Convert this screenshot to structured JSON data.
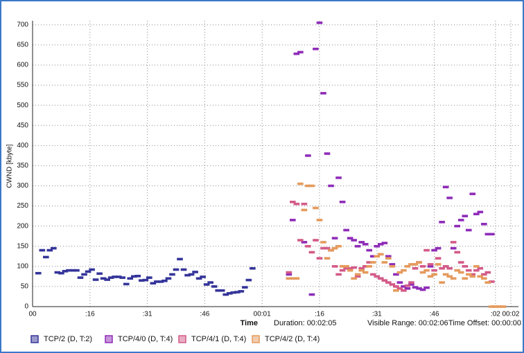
{
  "chart_data": {
    "type": "scatter",
    "y_label": "CWND [kbyte]",
    "x_label": "Time",
    "annotations": [
      "Duration: 00:02:05",
      "Visible Range: 00:02:06",
      "Time Offset: 00:00:00"
    ],
    "xlim": [
      0,
      127
    ],
    "xticks": [
      {
        "value": 0,
        "label": "00"
      },
      {
        "value": 15,
        "label": ":16"
      },
      {
        "value": 30,
        "label": ":31"
      },
      {
        "value": 45,
        "label": ":46"
      },
      {
        "value": 60,
        "label": "00:01"
      },
      {
        "value": 75,
        "label": ":16"
      },
      {
        "value": 90,
        "label": ":31"
      },
      {
        "value": 105,
        "label": ":46"
      },
      {
        "value": 121,
        "label": ":02"
      },
      {
        "value": 125,
        "label": "00:02"
      }
    ],
    "ylim": [
      0,
      710
    ],
    "yticks": [
      0,
      50,
      100,
      150,
      200,
      250,
      300,
      350,
      400,
      450,
      500,
      550,
      600,
      650,
      700
    ],
    "grid": true,
    "legend": "bottom",
    "series": [
      {
        "name": "TCP/2 (D, T:2)",
        "color": "#34349a",
        "x": [
          1.5,
          2.5,
          3.5,
          4.5,
          5.5,
          6.5,
          7.5,
          8.5,
          9.5,
          10.5,
          11.5,
          12.5,
          13.5,
          14.5,
          15.5,
          16.5,
          17.5,
          18.5,
          19.5,
          20.5,
          21.5,
          22.5,
          23.5,
          24.5,
          25.5,
          26.5,
          27.5,
          28.5,
          29.5,
          30.5,
          31.5,
          32.5,
          33.5,
          34.5,
          35.5,
          36.5,
          37.5,
          38.5,
          39.5,
          40.5,
          41.5,
          42.5,
          43.5,
          44.5,
          45.5,
          46.5,
          47.5,
          48.5,
          49.5,
          50.5,
          51.5,
          52.5,
          53.5,
          54.5,
          55.5,
          56.5,
          57.5
        ],
        "values": [
          83,
          140,
          123,
          140,
          145,
          85,
          83,
          88,
          90,
          90,
          90,
          72,
          80,
          87,
          92,
          67,
          82,
          70,
          67,
          72,
          74,
          74,
          72,
          56,
          70,
          75,
          76,
          65,
          66,
          72,
          58,
          62,
          62,
          64,
          70,
          80,
          92,
          118,
          92,
          78,
          80,
          86,
          70,
          74,
          55,
          60,
          50,
          40,
          40,
          30,
          33,
          35,
          36,
          38,
          48,
          66,
          95
        ]
      },
      {
        "name": "TCP/4/0 (D, T:4)",
        "color": "#8e2cb8",
        "x": [
          67,
          68,
          69,
          70,
          71,
          72,
          73,
          74,
          75,
          76,
          77,
          78,
          79,
          80,
          81,
          82,
          83,
          84,
          85,
          86,
          87,
          88,
          89,
          90,
          91,
          92,
          93,
          94,
          95,
          96,
          97,
          98,
          99,
          100,
          101,
          102,
          103,
          104,
          105,
          106,
          107,
          108,
          109,
          110,
          111,
          112,
          113,
          114,
          115,
          116,
          117,
          118,
          119,
          120
        ],
        "values": [
          80,
          215,
          628,
          632,
          160,
          375,
          30,
          640,
          705,
          530,
          380,
          300,
          170,
          320,
          260,
          190,
          170,
          165,
          150,
          160,
          155,
          140,
          125,
          150,
          155,
          158,
          125,
          105,
          80,
          60,
          50,
          45,
          55,
          48,
          45,
          42,
          47,
          100,
          140,
          145,
          210,
          297,
          270,
          145,
          200,
          215,
          225,
          190,
          280,
          230,
          235,
          205,
          180,
          180
        ]
      },
      {
        "name": "TCP/4/1 (D, T:4)",
        "color": "#d35a88",
        "x": [
          67,
          68,
          69,
          70,
          71,
          72,
          73,
          74,
          75,
          76,
          77,
          78,
          79,
          80,
          81,
          82,
          83,
          84,
          85,
          86,
          87,
          88,
          89,
          90,
          91,
          92,
          93,
          94,
          95,
          96,
          97,
          98,
          99,
          100,
          101,
          102,
          103,
          104,
          105,
          106,
          107,
          108,
          109,
          110,
          111,
          112,
          113,
          114,
          115,
          116,
          117,
          118,
          119,
          120
        ],
        "values": [
          85,
          260,
          255,
          165,
          255,
          150,
          135,
          165,
          120,
          145,
          145,
          140,
          100,
          80,
          90,
          95,
          95,
          97,
          75,
          95,
          100,
          110,
          80,
          75,
          70,
          65,
          60,
          55,
          50,
          45,
          40,
          52,
          60,
          95,
          110,
          100,
          140,
          105,
          90,
          120,
          95,
          100,
          95,
          160,
          135,
          110,
          100,
          90,
          80,
          90,
          95,
          80,
          85,
          62
        ]
      },
      {
        "name": "TCP/4/2 (D, T:4)",
        "color": "#e59a5c",
        "x": [
          67,
          68,
          69,
          70,
          71,
          72,
          73,
          74,
          75,
          76,
          77,
          78,
          79,
          80,
          81,
          82,
          83,
          84,
          85,
          86,
          87,
          88,
          89,
          90,
          91,
          92,
          93,
          94,
          95,
          96,
          97,
          98,
          99,
          100,
          101,
          102,
          103,
          104,
          105,
          106,
          107,
          108,
          109,
          110,
          111,
          112,
          113,
          114,
          115,
          116,
          117,
          118,
          119,
          120,
          121,
          122,
          123
        ],
        "values": [
          70,
          70,
          70,
          305,
          240,
          300,
          300,
          245,
          215,
          160,
          120,
          140,
          145,
          150,
          100,
          100,
          90,
          70,
          80,
          90,
          85,
          100,
          110,
          125,
          130,
          110,
          120,
          100,
          40,
          85,
          90,
          100,
          105,
          105,
          110,
          85,
          90,
          75,
          80,
          105,
          60,
          80,
          75,
          70,
          90,
          85,
          70,
          80,
          75,
          100,
          75,
          70,
          60,
          0,
          0,
          0,
          0
        ]
      }
    ]
  }
}
